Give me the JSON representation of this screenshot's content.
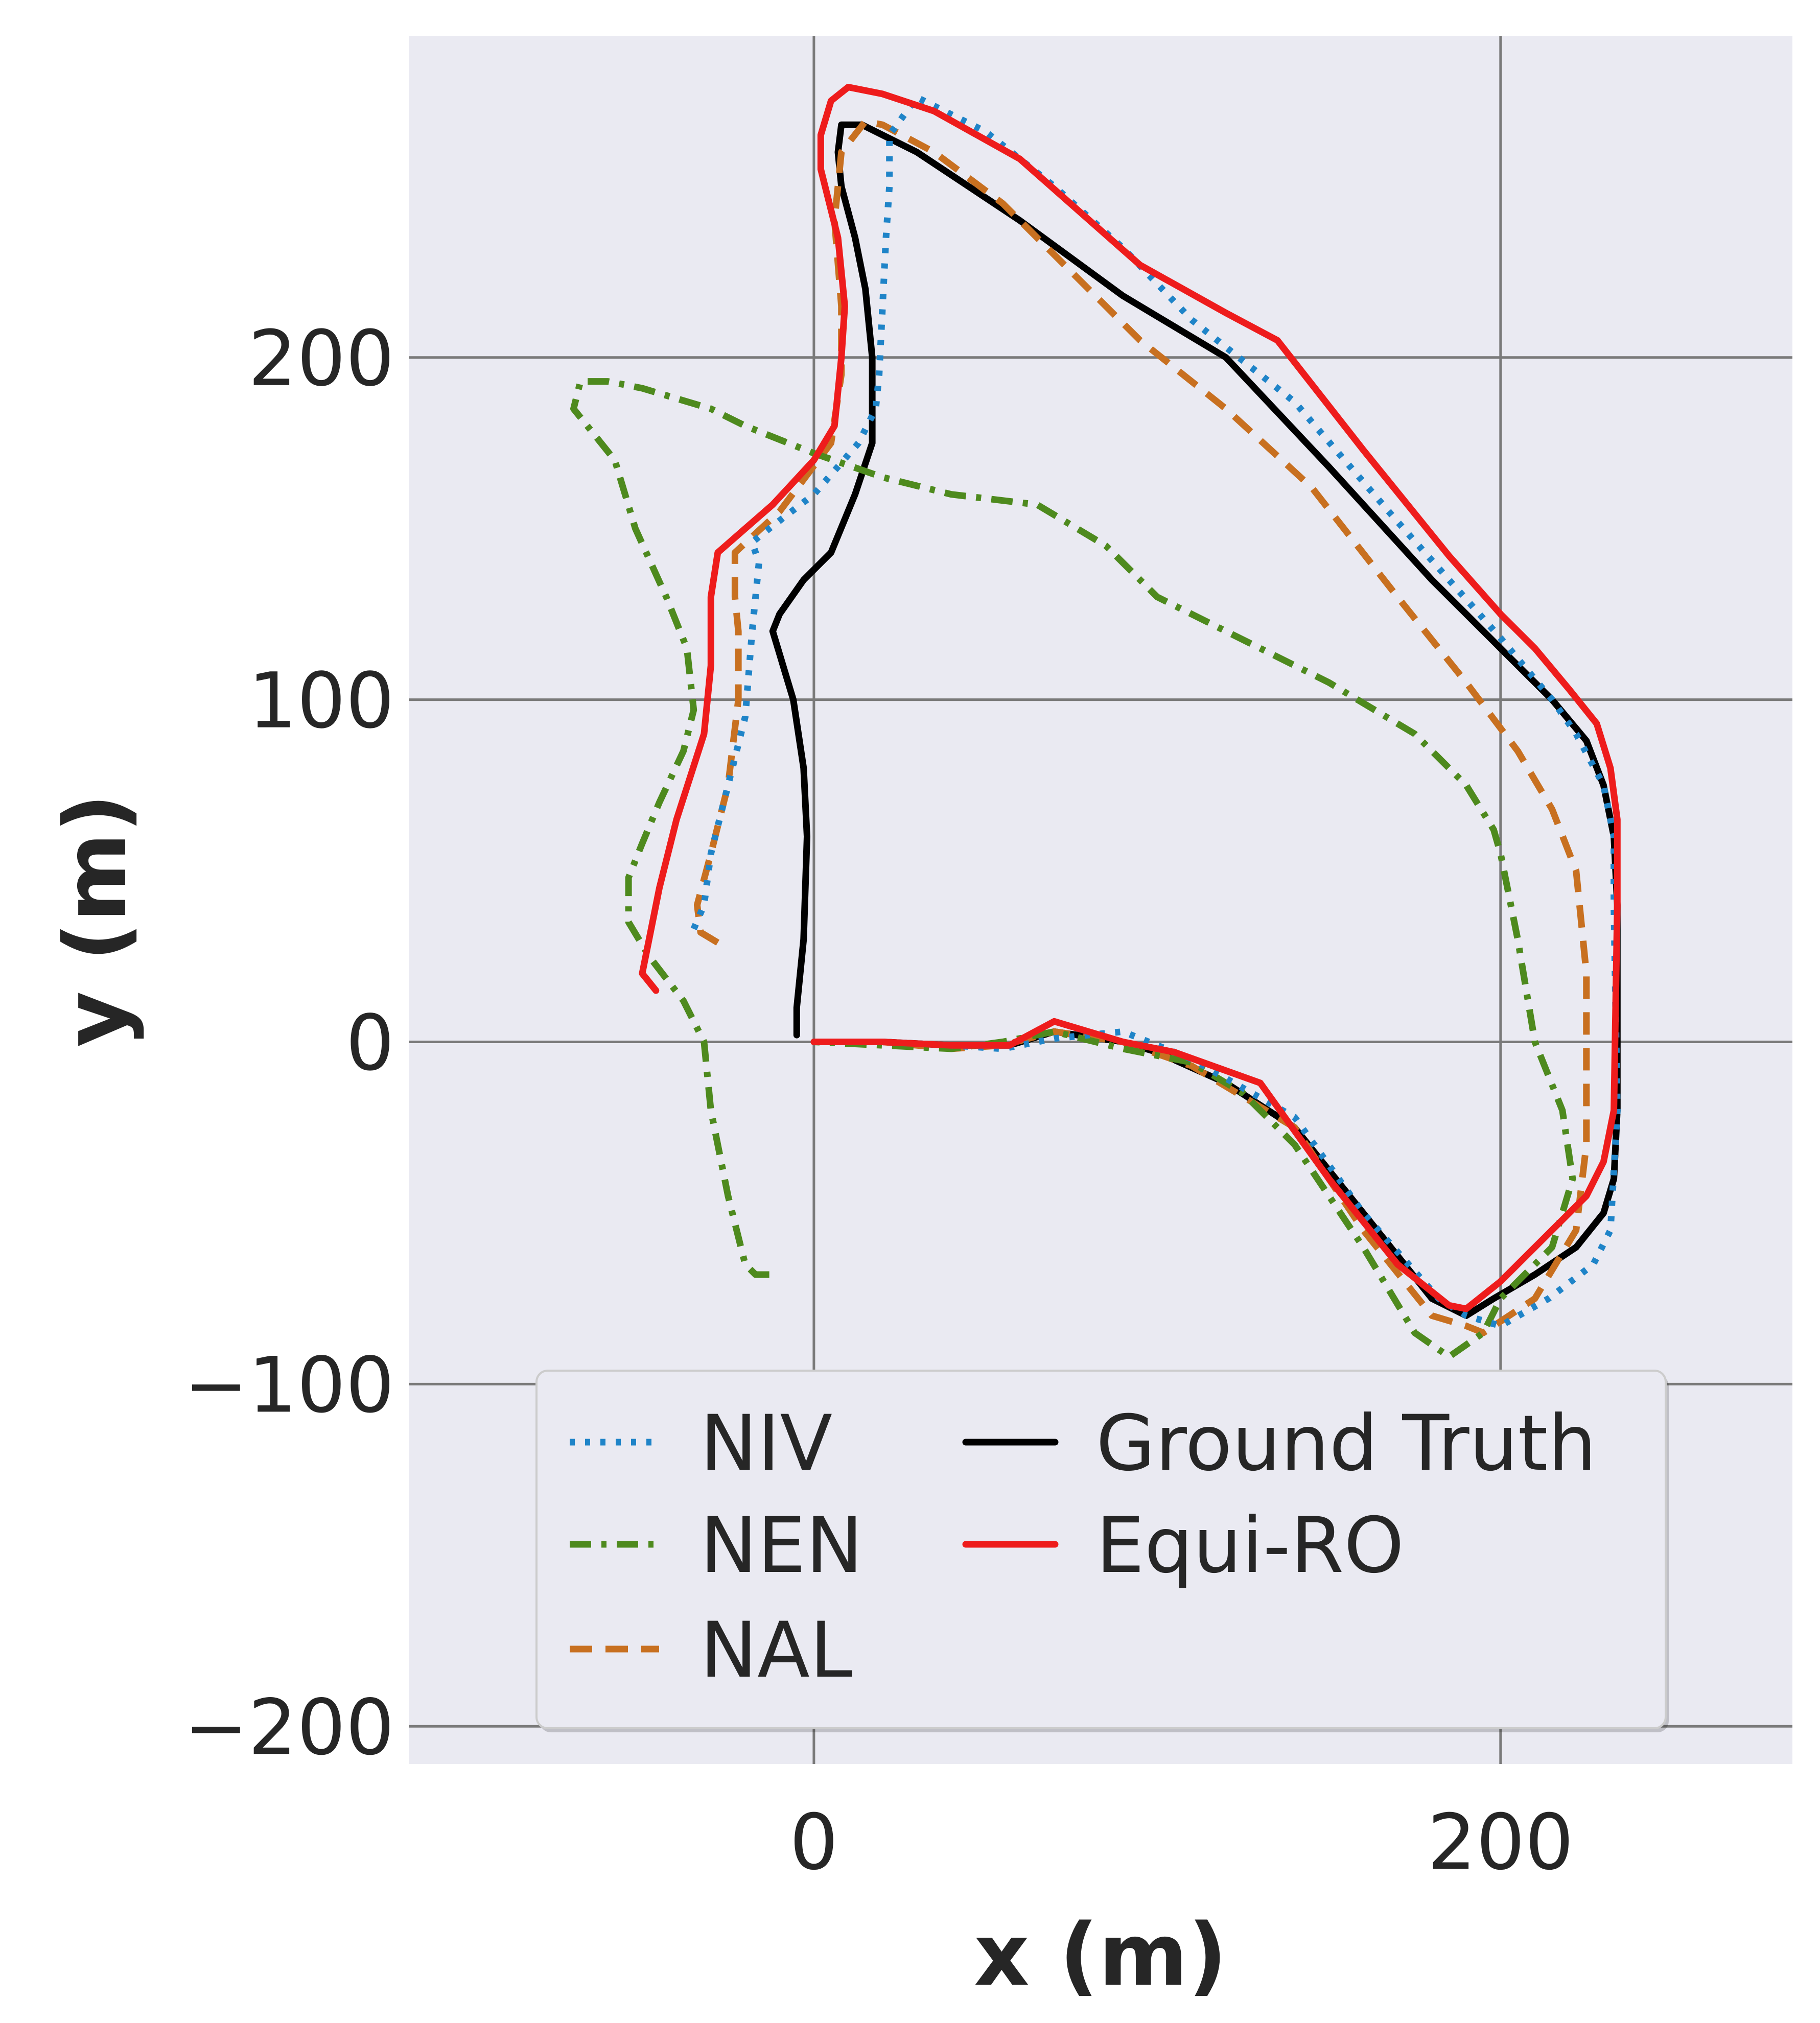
{
  "chart_data": {
    "type": "line",
    "title": "",
    "xlabel": "x (m)",
    "ylabel": "y (m)",
    "xlim": [
      -118,
      285
    ],
    "ylim": [
      -211,
      294
    ],
    "xticks": [
      0,
      200
    ],
    "yticks": [
      200,
      100,
      0,
      -100,
      -200
    ],
    "xtick_labels": [
      "0",
      "200"
    ],
    "ytick_labels": [
      "200",
      "100",
      "0",
      "−100",
      "−200"
    ],
    "grid": true,
    "legend_position": "lower-center",
    "legend_columns": 2,
    "series": [
      {
        "name": "NIV",
        "color": "#1f84c8",
        "style": "dotted",
        "x": [
          -35,
          -32,
          -30,
          -25,
          -20,
          -18,
          -16,
          -18,
          -13,
          0,
          13,
          18,
          19,
          20,
          21,
          22,
          22,
          30,
          50,
          70,
          90,
          110,
          140,
          170,
          200,
          215,
          222,
          230,
          233,
          233,
          234,
          232,
          227,
          214,
          200,
          190,
          182,
          160,
          140,
          110,
          90,
          70,
          55,
          40,
          20,
          0
        ],
        "y": [
          33,
          40,
          55,
          75,
          95,
          120,
          140,
          146,
          150,
          160,
          175,
          185,
          195,
          215,
          235,
          250,
          265,
          276,
          266,
          250,
          232,
          211,
          187,
          152,
          118,
          100,
          90,
          75,
          60,
          40,
          -20,
          -55,
          -65,
          -75,
          -83,
          -80,
          -75,
          -50,
          -22,
          -5,
          3,
          1,
          -2,
          -1,
          0,
          0
        ]
      },
      {
        "name": "NEN",
        "color": "#4e8a1e",
        "style": "dashdot",
        "x": [
          -13,
          -17,
          -20,
          -25,
          -30,
          -32,
          -38,
          -48,
          -54,
          -54,
          -50,
          -45,
          -38,
          -35,
          -37,
          -43,
          -52,
          -58,
          -70,
          -68,
          -60,
          -50,
          -40,
          -30,
          -20,
          0,
          20,
          40,
          65,
          85,
          100,
          120,
          150,
          175,
          190,
          198,
          200,
          205,
          210,
          218,
          221,
          215,
          200,
          195,
          185,
          175,
          160,
          140,
          125,
          110,
          90,
          70,
          55,
          40,
          20,
          0
        ],
        "y": [
          -68,
          -68,
          -65,
          -45,
          -20,
          0,
          12,
          25,
          35,
          48,
          58,
          70,
          85,
          97,
          115,
          130,
          150,
          170,
          185,
          193,
          193,
          191,
          188,
          185,
          180,
          172,
          165,
          160,
          157,
          145,
          130,
          120,
          105,
          90,
          75,
          62,
          55,
          30,
          0,
          -20,
          -40,
          -60,
          -75,
          -85,
          -92,
          -85,
          -60,
          -30,
          -15,
          -6,
          -2,
          3,
          0,
          -2,
          -1,
          0
        ]
      },
      {
        "name": "NAL",
        "color": "#c87020",
        "style": "dashed",
        "x": [
          -28,
          -33,
          -34,
          -30,
          -25,
          -22,
          -22,
          -23,
          -23,
          -10,
          5,
          8,
          8,
          6,
          8,
          15,
          20,
          35,
          55,
          75,
          95,
          120,
          145,
          170,
          190,
          205,
          215,
          222,
          225,
          225,
          222,
          210,
          195,
          190,
          180,
          160,
          140,
          110,
          90,
          70,
          55,
          40,
          20,
          0
        ],
        "y": [
          29,
          32,
          40,
          55,
          75,
          100,
          120,
          130,
          143,
          155,
          175,
          195,
          215,
          240,
          260,
          269,
          268,
          260,
          245,
          225,
          205,
          185,
          162,
          130,
          105,
          85,
          68,
          50,
          20,
          -30,
          -55,
          -75,
          -85,
          -83,
          -80,
          -55,
          -25,
          -7,
          0,
          3,
          -1,
          -2,
          0,
          0
        ]
      },
      {
        "name": "Ground Truth",
        "color": "#000000",
        "style": "solid",
        "x": [
          -5,
          -5,
          -3,
          -2,
          -3,
          -6,
          -12,
          -10,
          -3,
          5,
          12,
          17,
          17,
          15,
          12,
          8,
          7,
          8,
          14,
          30,
          60,
          90,
          120,
          150,
          180,
          200,
          215,
          225,
          230,
          233,
          234,
          234,
          233,
          230,
          222,
          210,
          198,
          190,
          180,
          160,
          140,
          120,
          100,
          90,
          70,
          57,
          40,
          20,
          0
        ],
        "y": [
          2,
          10,
          30,
          60,
          80,
          100,
          120,
          125,
          135,
          143,
          160,
          175,
          200,
          220,
          235,
          250,
          260,
          268,
          268,
          260,
          240,
          218,
          200,
          168,
          135,
          115,
          100,
          88,
          75,
          60,
          40,
          -20,
          -40,
          -50,
          -60,
          -68,
          -75,
          -80,
          -75,
          -50,
          -25,
          -12,
          -3,
          0,
          3,
          -1,
          -1,
          0,
          0
        ]
      },
      {
        "name": "Equi-RO",
        "color": "#ee1c1c",
        "style": "solid",
        "x": [
          -46,
          -50,
          -48,
          -45,
          -40,
          -32,
          -30,
          -30,
          -28,
          -20,
          -12,
          0,
          6,
          8,
          9,
          7,
          2,
          2,
          5,
          10,
          20,
          35,
          60,
          95,
          120,
          135,
          160,
          185,
          200,
          210,
          220,
          228,
          232,
          234,
          234,
          233,
          230,
          225,
          210,
          200,
          190,
          185,
          170,
          150,
          130,
          105,
          90,
          70,
          57,
          40,
          20,
          0
        ],
        "y": [
          15,
          20,
          30,
          45,
          65,
          90,
          110,
          130,
          143,
          150,
          157,
          170,
          180,
          200,
          215,
          235,
          255,
          265,
          275,
          279,
          277,
          272,
          258,
          227,
          213,
          205,
          173,
          142,
          125,
          115,
          103,
          93,
          80,
          65,
          40,
          -20,
          -35,
          -45,
          -60,
          -70,
          -78,
          -77,
          -65,
          -40,
          -12,
          -3,
          0,
          6,
          -1,
          -1,
          0,
          0
        ]
      }
    ]
  }
}
